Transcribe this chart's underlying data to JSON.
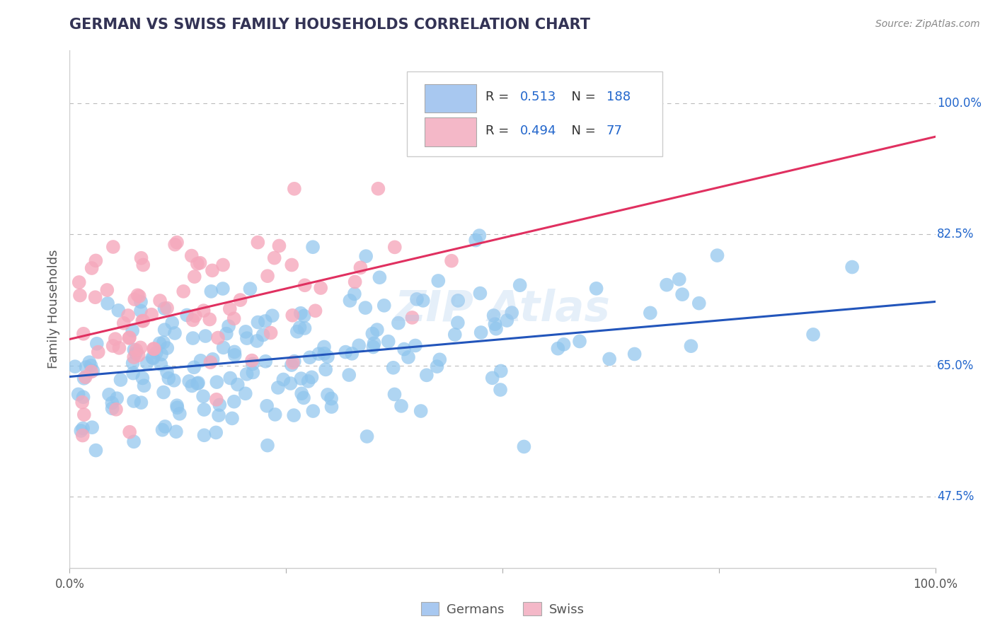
{
  "title": "GERMAN VS SWISS FAMILY HOUSEHOLDS CORRELATION CHART",
  "source_text": "Source: ZipAtlas.com",
  "watermark": "ZIP Atlas",
  "ylabel": "Family Households",
  "x_min": 0.0,
  "x_max": 1.0,
  "y_min": 0.38,
  "y_max": 1.07,
  "yticks": [
    0.475,
    0.65,
    0.825,
    1.0
  ],
  "ytick_labels": [
    "47.5%",
    "65.0%",
    "82.5%",
    "100.0%"
  ],
  "german_R": 0.513,
  "german_N": 188,
  "swiss_R": 0.494,
  "swiss_N": 77,
  "german_color": "#8EC4ED",
  "swiss_color": "#F5A8BC",
  "german_line_color": "#2255BB",
  "swiss_line_color": "#E03060",
  "legend_german_color": "#A8C8F0",
  "legend_swiss_color": "#F4B8C8",
  "title_color": "#333355",
  "source_color": "#888888",
  "r_value_color": "#2266CC",
  "background_color": "#FFFFFF",
  "grid_color": "#CCCCCC",
  "dashed_color": "#BBBBBB",
  "german_line_intercept": 0.635,
  "german_line_slope": 0.1,
  "swiss_line_intercept": 0.685,
  "swiss_line_slope": 0.27,
  "german_scatter_seed": 42,
  "swiss_scatter_seed": 7
}
